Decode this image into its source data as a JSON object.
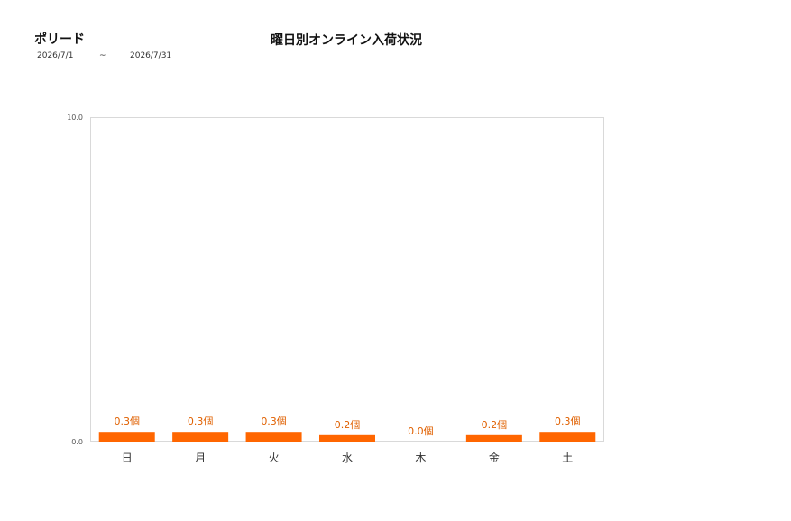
{
  "header": {
    "product_name": "ポリード",
    "date_from": "2026/7/1",
    "date_separator": "~",
    "date_to": "2026/7/31"
  },
  "chart_data": {
    "type": "bar",
    "title": "曜日別オンライン入荷状況",
    "categories": [
      "日",
      "月",
      "火",
      "水",
      "木",
      "金",
      "土"
    ],
    "values": [
      0.3,
      0.3,
      0.3,
      0.2,
      0.0,
      0.2,
      0.3
    ],
    "data_labels": [
      "0.3個",
      "0.3個",
      "0.3個",
      "0.2個",
      "0.0個",
      "0.2個",
      "0.3個"
    ],
    "y_ticks": [
      "0.0",
      "10.0"
    ],
    "ylim": [
      0,
      10
    ],
    "xlabel": "",
    "ylabel": "",
    "grid": false,
    "legend": "none",
    "colors": {
      "bar": "#FF6600",
      "label": "#E06000",
      "axis_text": "#555555",
      "frame": "#D9D9D9"
    }
  }
}
